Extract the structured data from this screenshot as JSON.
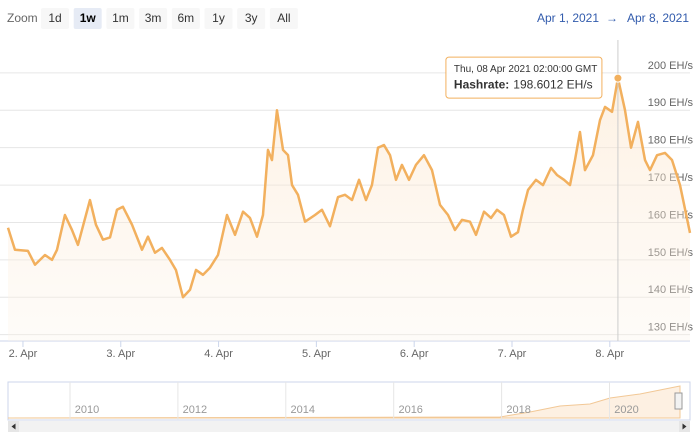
{
  "range_selector": {
    "zoom_label": "Zoom",
    "buttons": [
      "1d",
      "1w",
      "1m",
      "3m",
      "6m",
      "1y",
      "3y",
      "All"
    ],
    "selected": "1w",
    "from": "Apr 1, 2021",
    "arrow": "→",
    "to": "Apr 8, 2021"
  },
  "chart_data": {
    "type": "area",
    "x": [
      1.847,
      1.918,
      2.051,
      2.123,
      2.225,
      2.297,
      2.348,
      2.429,
      2.501,
      2.562,
      2.685,
      2.746,
      2.818,
      2.89,
      2.961,
      3.022,
      3.115,
      3.217,
      3.278,
      3.35,
      3.421,
      3.503,
      3.564,
      3.636,
      3.708,
      3.769,
      3.84,
      3.912,
      3.994,
      4.086,
      4.168,
      4.25,
      4.321,
      4.393,
      4.454,
      4.505,
      4.546,
      4.597,
      4.659,
      4.71,
      4.751,
      4.812,
      4.884,
      4.986,
      5.057,
      5.139,
      5.221,
      5.292,
      5.364,
      5.436,
      5.507,
      5.568,
      5.63,
      5.691,
      5.753,
      5.814,
      5.875,
      5.947,
      6.018,
      6.1,
      6.182,
      6.264,
      6.346,
      6.417,
      6.489,
      6.571,
      6.632,
      6.714,
      6.785,
      6.847,
      6.918,
      6.99,
      7.061,
      7.112,
      7.164,
      7.245,
      7.317,
      7.399,
      7.46,
      7.532,
      7.593,
      7.644,
      7.695,
      7.746,
      7.828,
      7.9,
      7.951,
      8.023,
      8.083,
      8.155,
      8.217,
      8.288,
      8.36,
      8.411,
      8.483,
      8.564,
      8.636,
      8.718,
      8.82
    ],
    "values": [
      158.6,
      152.7,
      152.4,
      148.7,
      151.3,
      150,
      152.7,
      162,
      158,
      154,
      166,
      159.4,
      155.4,
      156,
      163.4,
      164.2,
      159.4,
      152.7,
      156.2,
      151.9,
      153.2,
      150,
      147.3,
      140,
      142,
      147.3,
      146,
      147.9,
      151.3,
      162,
      156.7,
      162.9,
      161.2,
      156.2,
      162,
      179.4,
      176.7,
      190,
      179.4,
      178,
      170,
      167.4,
      160.2,
      162,
      163.4,
      159,
      166.8,
      167.4,
      166,
      171.4,
      166,
      170,
      180,
      180.7,
      178,
      171.4,
      175.4,
      171.4,
      175.4,
      178,
      174,
      164.7,
      162,
      158,
      160.7,
      160.2,
      156.7,
      162.9,
      161.2,
      163.4,
      162,
      156.2,
      157.4,
      163.4,
      168.7,
      171.4,
      170,
      174.6,
      172.7,
      171.4,
      170,
      176.7,
      184.2,
      174,
      178,
      187.4,
      190.9,
      189.6,
      198.6012,
      190.1,
      180,
      186.9,
      176.7,
      174,
      178,
      178.6,
      176.7,
      170,
      157.2
    ],
    "color": "#f2b05e",
    "xlim": [
      1.847,
      8.82
    ],
    "xticks": [
      {
        "value": 2,
        "label": "2. Apr"
      },
      {
        "value": 3,
        "label": "3. Apr"
      },
      {
        "value": 4,
        "label": "4. Apr"
      },
      {
        "value": 5,
        "label": "5. Apr"
      },
      {
        "value": 6,
        "label": "6. Apr"
      },
      {
        "value": 7,
        "label": "7. Apr"
      },
      {
        "value": 8,
        "label": "8. Apr"
      }
    ],
    "ylim": [
      128.3,
      208.8
    ],
    "yticks": [
      {
        "value": 130,
        "label": "130 EH/s"
      },
      {
        "value": 140,
        "label": "140 EH/s"
      },
      {
        "value": 150,
        "label": "150 EH/s"
      },
      {
        "value": 160,
        "label": "160 EH/s"
      },
      {
        "value": 170,
        "label": "170 EH/s"
      },
      {
        "value": 180,
        "label": "180 EH/s"
      },
      {
        "value": 190,
        "label": "190 EH/s"
      },
      {
        "value": 200,
        "label": "200 EH/s"
      }
    ],
    "grid": true,
    "tooltip": {
      "header": "Thu, 08 Apr 2021 02:00:00 GMT",
      "label": "Hashrate:",
      "value": "198.6012 EH/s"
    }
  },
  "navigator": {
    "labels": [
      "2010",
      "2012",
      "2014",
      "2016",
      "2018",
      "2020"
    ]
  }
}
